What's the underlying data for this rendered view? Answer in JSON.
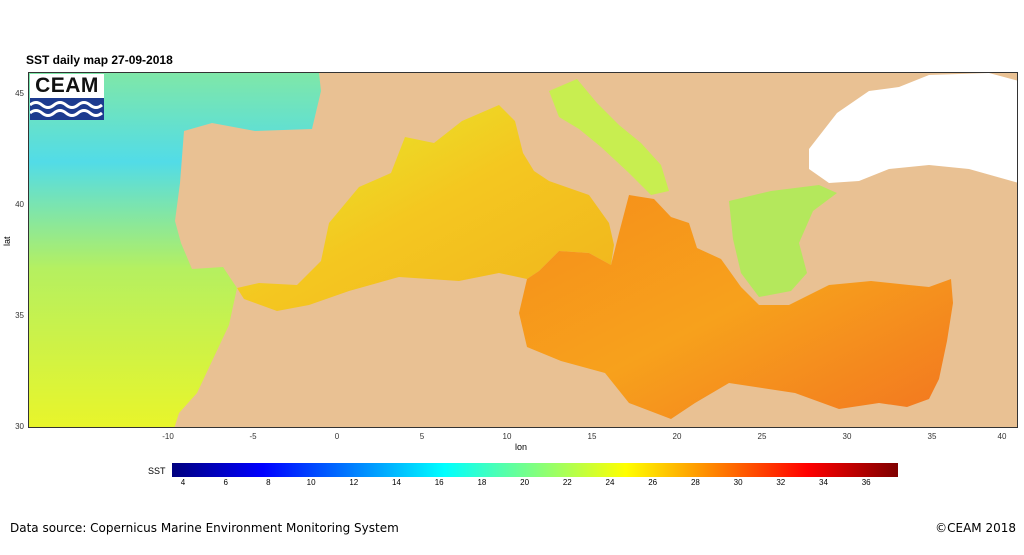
{
  "map": {
    "title": "SST daily map 27-09-2018",
    "xlabel": "lon",
    "ylabel": "lat",
    "x_ticks": [
      "-10",
      "-5",
      "0",
      "5",
      "10",
      "15",
      "20",
      "25",
      "30",
      "35",
      "40"
    ],
    "y_ticks": [
      "45",
      "40",
      "35",
      "30"
    ],
    "logo_text": "CEAM",
    "colors": {
      "land": "#E9C193",
      "atlantic": "#9BEA7F",
      "western_med": "#F2C81E",
      "eastern_med": "#F58A1F",
      "black_sea": "#FFFFFF"
    }
  },
  "legend": {
    "title": "SST",
    "ticks": [
      "4",
      "6",
      "8",
      "10",
      "12",
      "14",
      "16",
      "18",
      "20",
      "22",
      "24",
      "26",
      "28",
      "30",
      "32",
      "34",
      "36"
    ],
    "colors": [
      "#00007F",
      "#0000FF",
      "#0080FF",
      "#00FFFF",
      "#80FF80",
      "#FFFF00",
      "#FF8000",
      "#FF0000",
      "#7F0000"
    ]
  },
  "footer": {
    "source": "Data source: Copernicus Marine Environment Monitoring System",
    "copyright": "©CEAM 2018"
  }
}
